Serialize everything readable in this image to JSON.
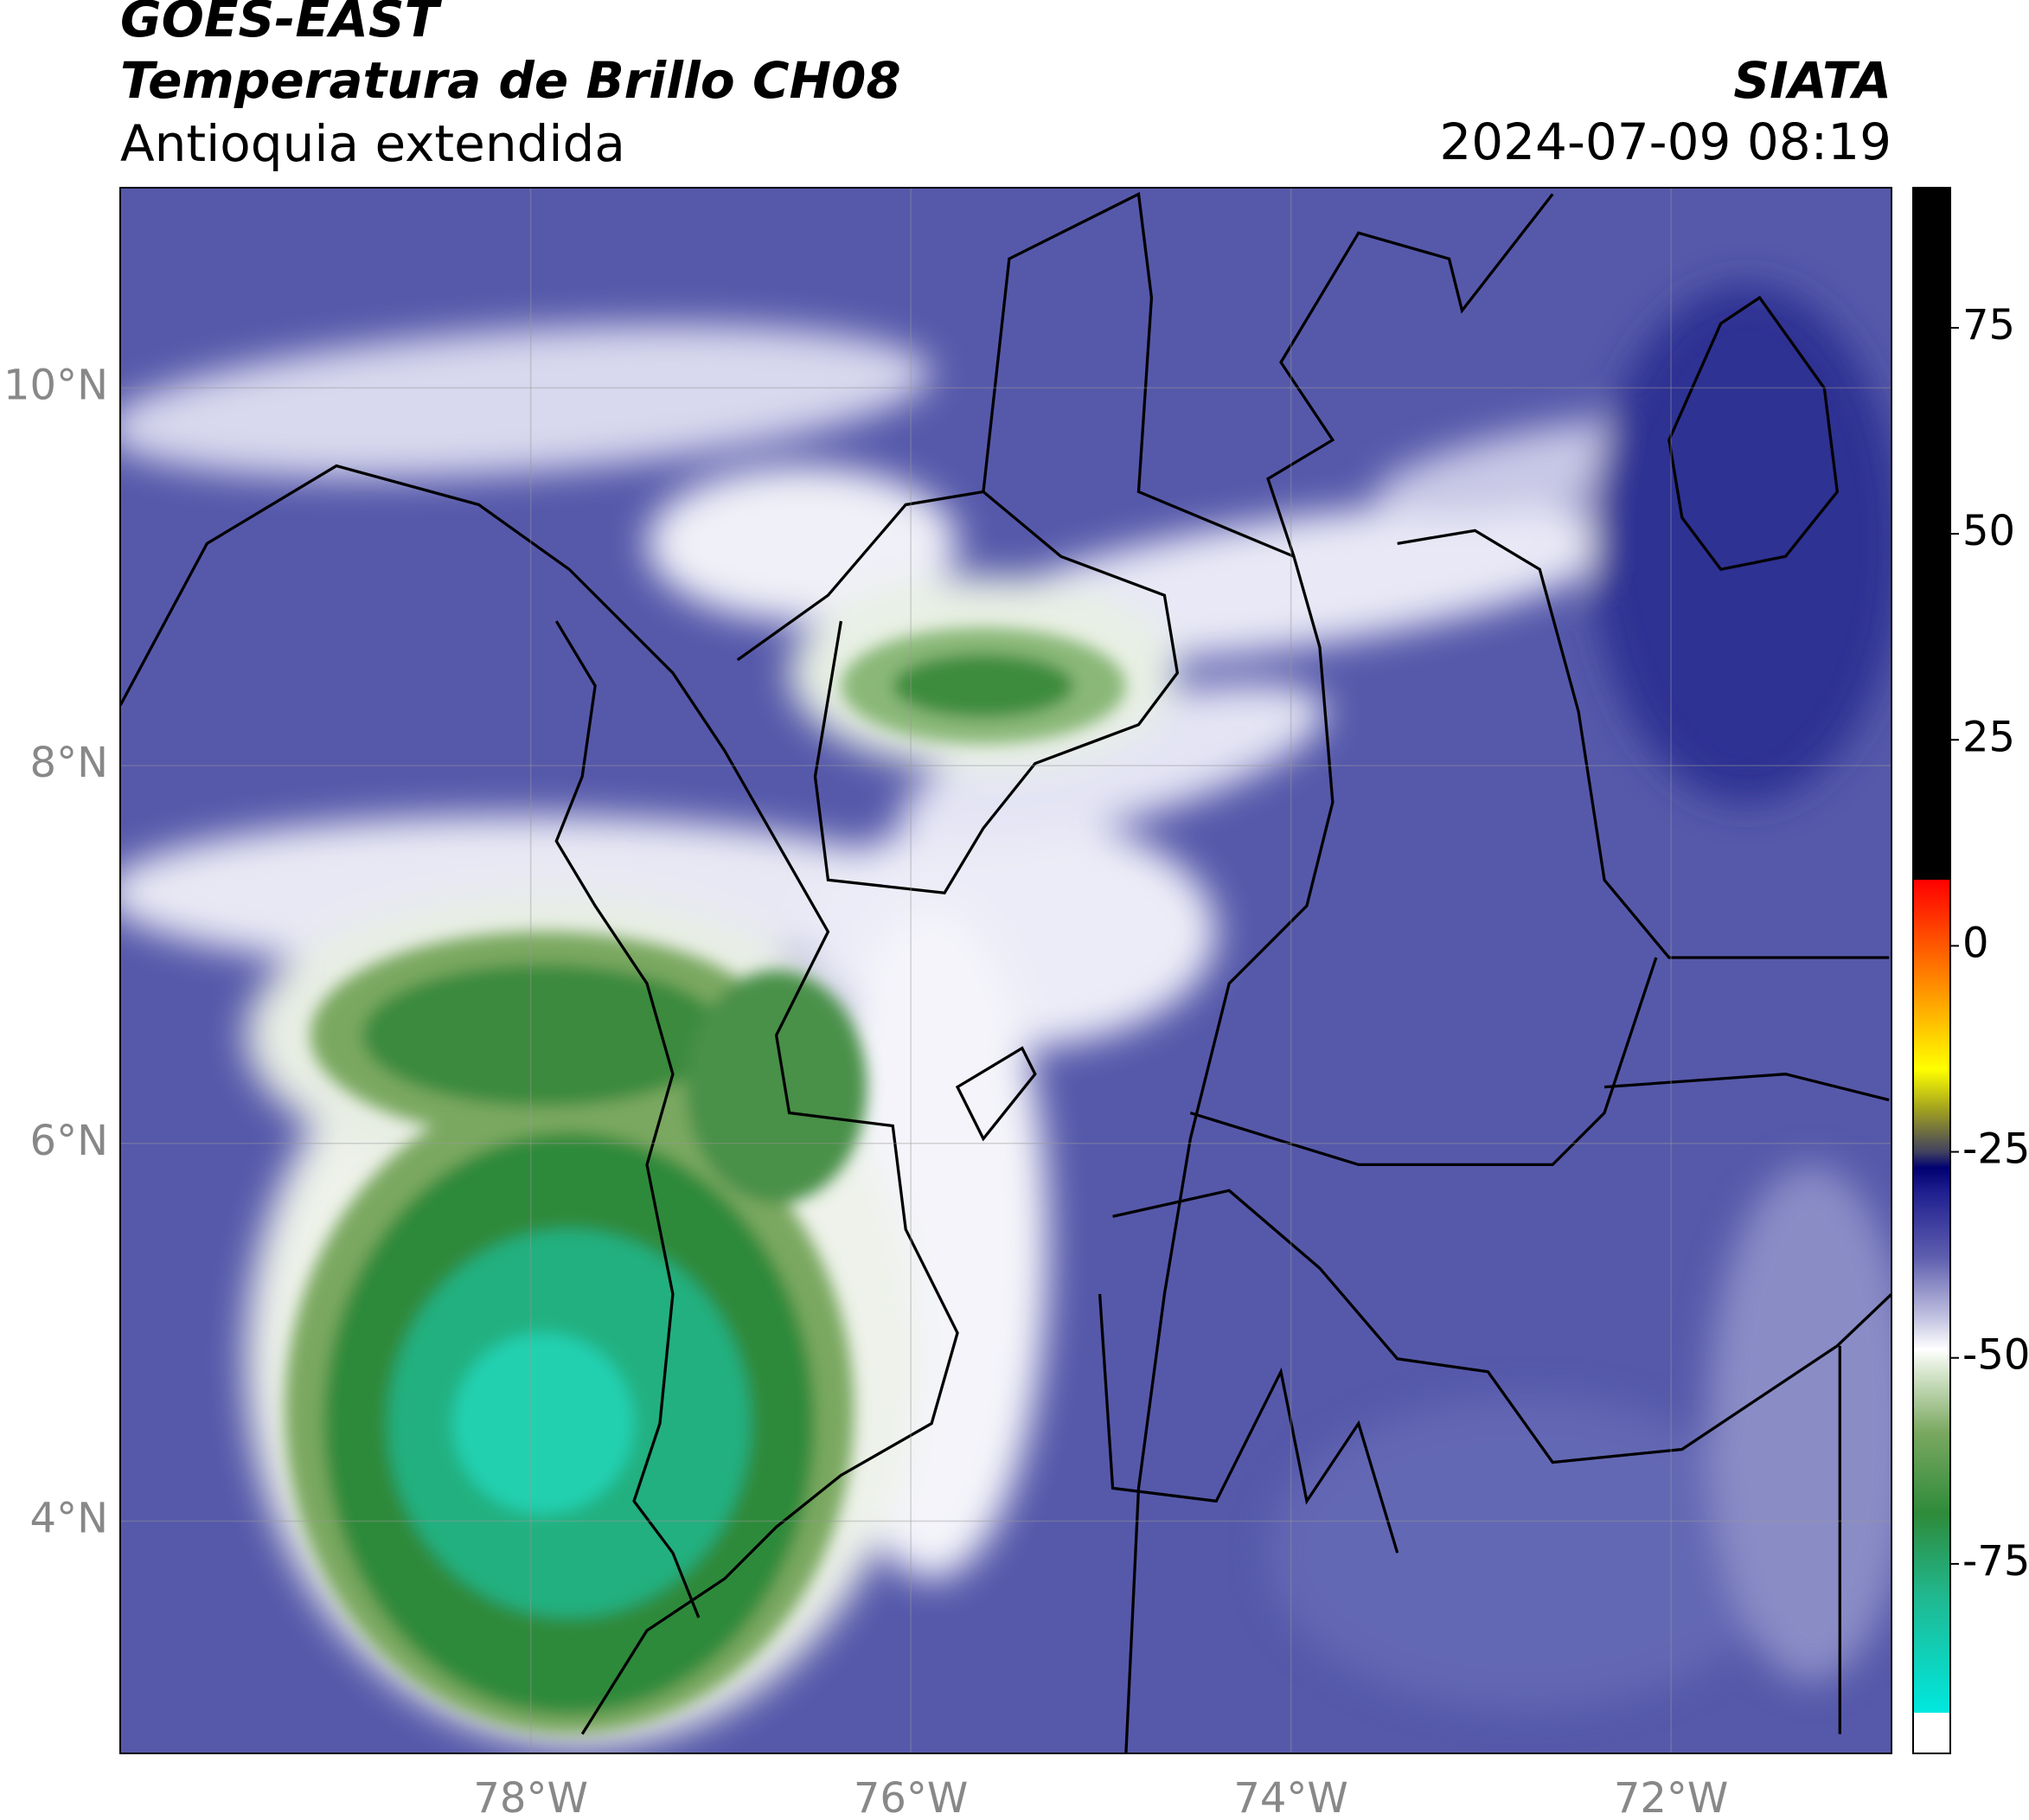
{
  "header": {
    "title": "GOES-EAST",
    "subtitle": "Temperatura de Brillo CH08",
    "region": "Antioquia extendida",
    "source": "SIATA",
    "timestamp": "2024-07-09 08:19"
  },
  "map": {
    "xlim": [
      -80.16,
      -70.84
    ],
    "ylim": [
      2.77,
      11.06
    ],
    "xticks": [
      {
        "value": -78,
        "label": "78°W"
      },
      {
        "value": -76,
        "label": "76°W"
      },
      {
        "value": -74,
        "label": "74°W"
      },
      {
        "value": -72,
        "label": "72°W"
      }
    ],
    "yticks": [
      {
        "value": 10,
        "label": "10°N"
      },
      {
        "value": 8,
        "label": "8°N"
      },
      {
        "value": 6,
        "label": "6°N"
      },
      {
        "value": 4,
        "label": "4°N"
      }
    ],
    "grid": true
  },
  "colorbar": {
    "lim": [
      -98,
      92
    ],
    "ticks": [
      75,
      50,
      25,
      0,
      -25,
      -50,
      -75
    ]
  }
}
